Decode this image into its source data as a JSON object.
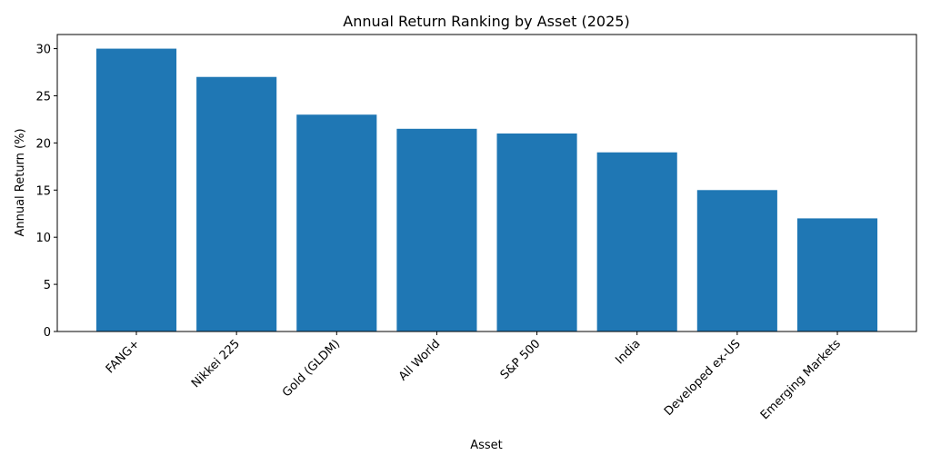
{
  "chart_data": {
    "type": "bar",
    "title": "Annual Return Ranking by Asset (2025)",
    "x_label": "Asset",
    "y_label": "Annual Return (%)",
    "categories": [
      "FANG+",
      "Nikkei 225",
      "Gold (GLDM)",
      "All World",
      "S&P 500",
      "India",
      "Developed ex-US",
      "Emerging Markets"
    ],
    "values": [
      30,
      27,
      23,
      21.5,
      21,
      19,
      15,
      12
    ],
    "color": "#1f77b4",
    "ylim": [
      0,
      31.5
    ],
    "yticks": [
      0,
      5,
      10,
      15,
      20,
      25,
      30
    ],
    "grid": false
  }
}
